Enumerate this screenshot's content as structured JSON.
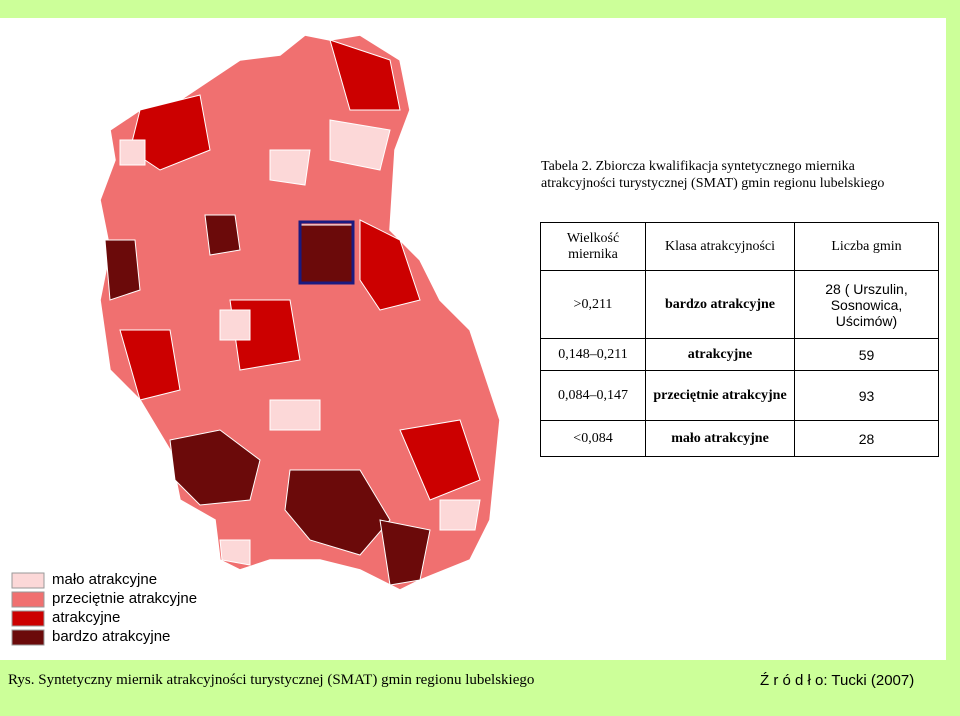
{
  "table_title": "Tabela 2. Zbiorcza kwalifikacja syntetycznego miernika atrakcyjności turystycznej (SMAT) gmin regionu lubelskiego",
  "table": {
    "header": [
      "Wielkość miernika",
      "Klasa atrakcyjności",
      "Liczba gmin"
    ],
    "rows": [
      [
        ">0,211",
        "bardzo atrakcyjne",
        "28 ( Urszulin, Sosnowica, Uścimów)"
      ],
      [
        "0,148–0,211",
        "atrakcyjne",
        "59"
      ],
      [
        "0,084–0,147",
        "przeciętnie atrakcyjne",
        "93"
      ],
      [
        "<0,084",
        "mało atrakcyjne",
        "28"
      ]
    ]
  },
  "legend": [
    "mało atrakcyjne",
    "przeciętnie atrakcyjne",
    "atrakcyjne",
    "bardzo atrakcyjne"
  ],
  "caption": "Rys. Syntetyczny miernik atrakcyjności turystycznej (SMAT) gmin regionu lubelskiego",
  "source": "Ź r ó d ł o: Tucki (2007)"
}
